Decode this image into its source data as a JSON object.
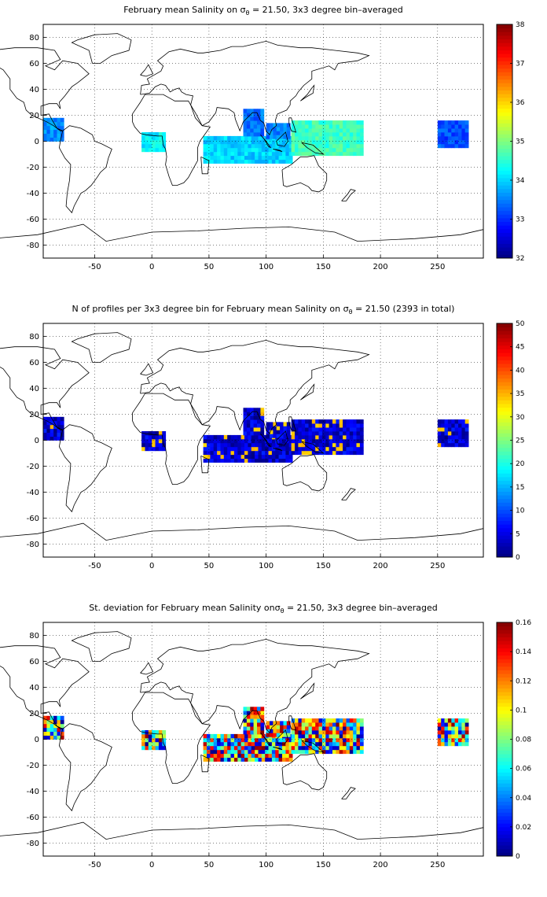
{
  "panels": [
    {
      "title_pre": "February mean Salinity on σ",
      "title_sub": "θ",
      "title_post": " = 21.50, 3x3 degree bin–averaged",
      "colorbar": {
        "min": 32,
        "max": 38,
        "ticks": [
          "38",
          "37",
          "36",
          "35",
          "34",
          "33",
          "32"
        ]
      }
    },
    {
      "title_pre": "N of profiles per 3x3 degree bin for February mean Salinity on σ",
      "title_sub": "θ",
      "title_post": " = 21.50 (2393 in total)",
      "colorbar": {
        "min": 0,
        "max": 50,
        "ticks": [
          "50",
          "45",
          "40",
          "35",
          "30",
          "25",
          "20",
          "15",
          "10",
          "5",
          "0"
        ]
      }
    },
    {
      "title_pre": "St. deviation for February mean Salinity onσ",
      "title_sub": "θ",
      "title_post": " = 21.50, 3x3 degree bin–averaged",
      "colorbar": {
        "min": 0,
        "max": 0.16,
        "ticks": [
          "0.16",
          "0.14",
          "0.12",
          "0.1",
          "0.08",
          "0.06",
          "0.04",
          "0.02",
          "0"
        ]
      }
    }
  ],
  "axes": {
    "x_ticks": [
      "-50",
      "0",
      "50",
      "100",
      "150",
      "200",
      "250"
    ],
    "y_ticks": [
      "80",
      "60",
      "40",
      "20",
      "0",
      "-20",
      "-40",
      "-60",
      "-80"
    ],
    "xlim": [
      -95,
      290
    ],
    "ylim": [
      -90,
      90
    ],
    "grid": true
  },
  "colormap": "jet"
}
